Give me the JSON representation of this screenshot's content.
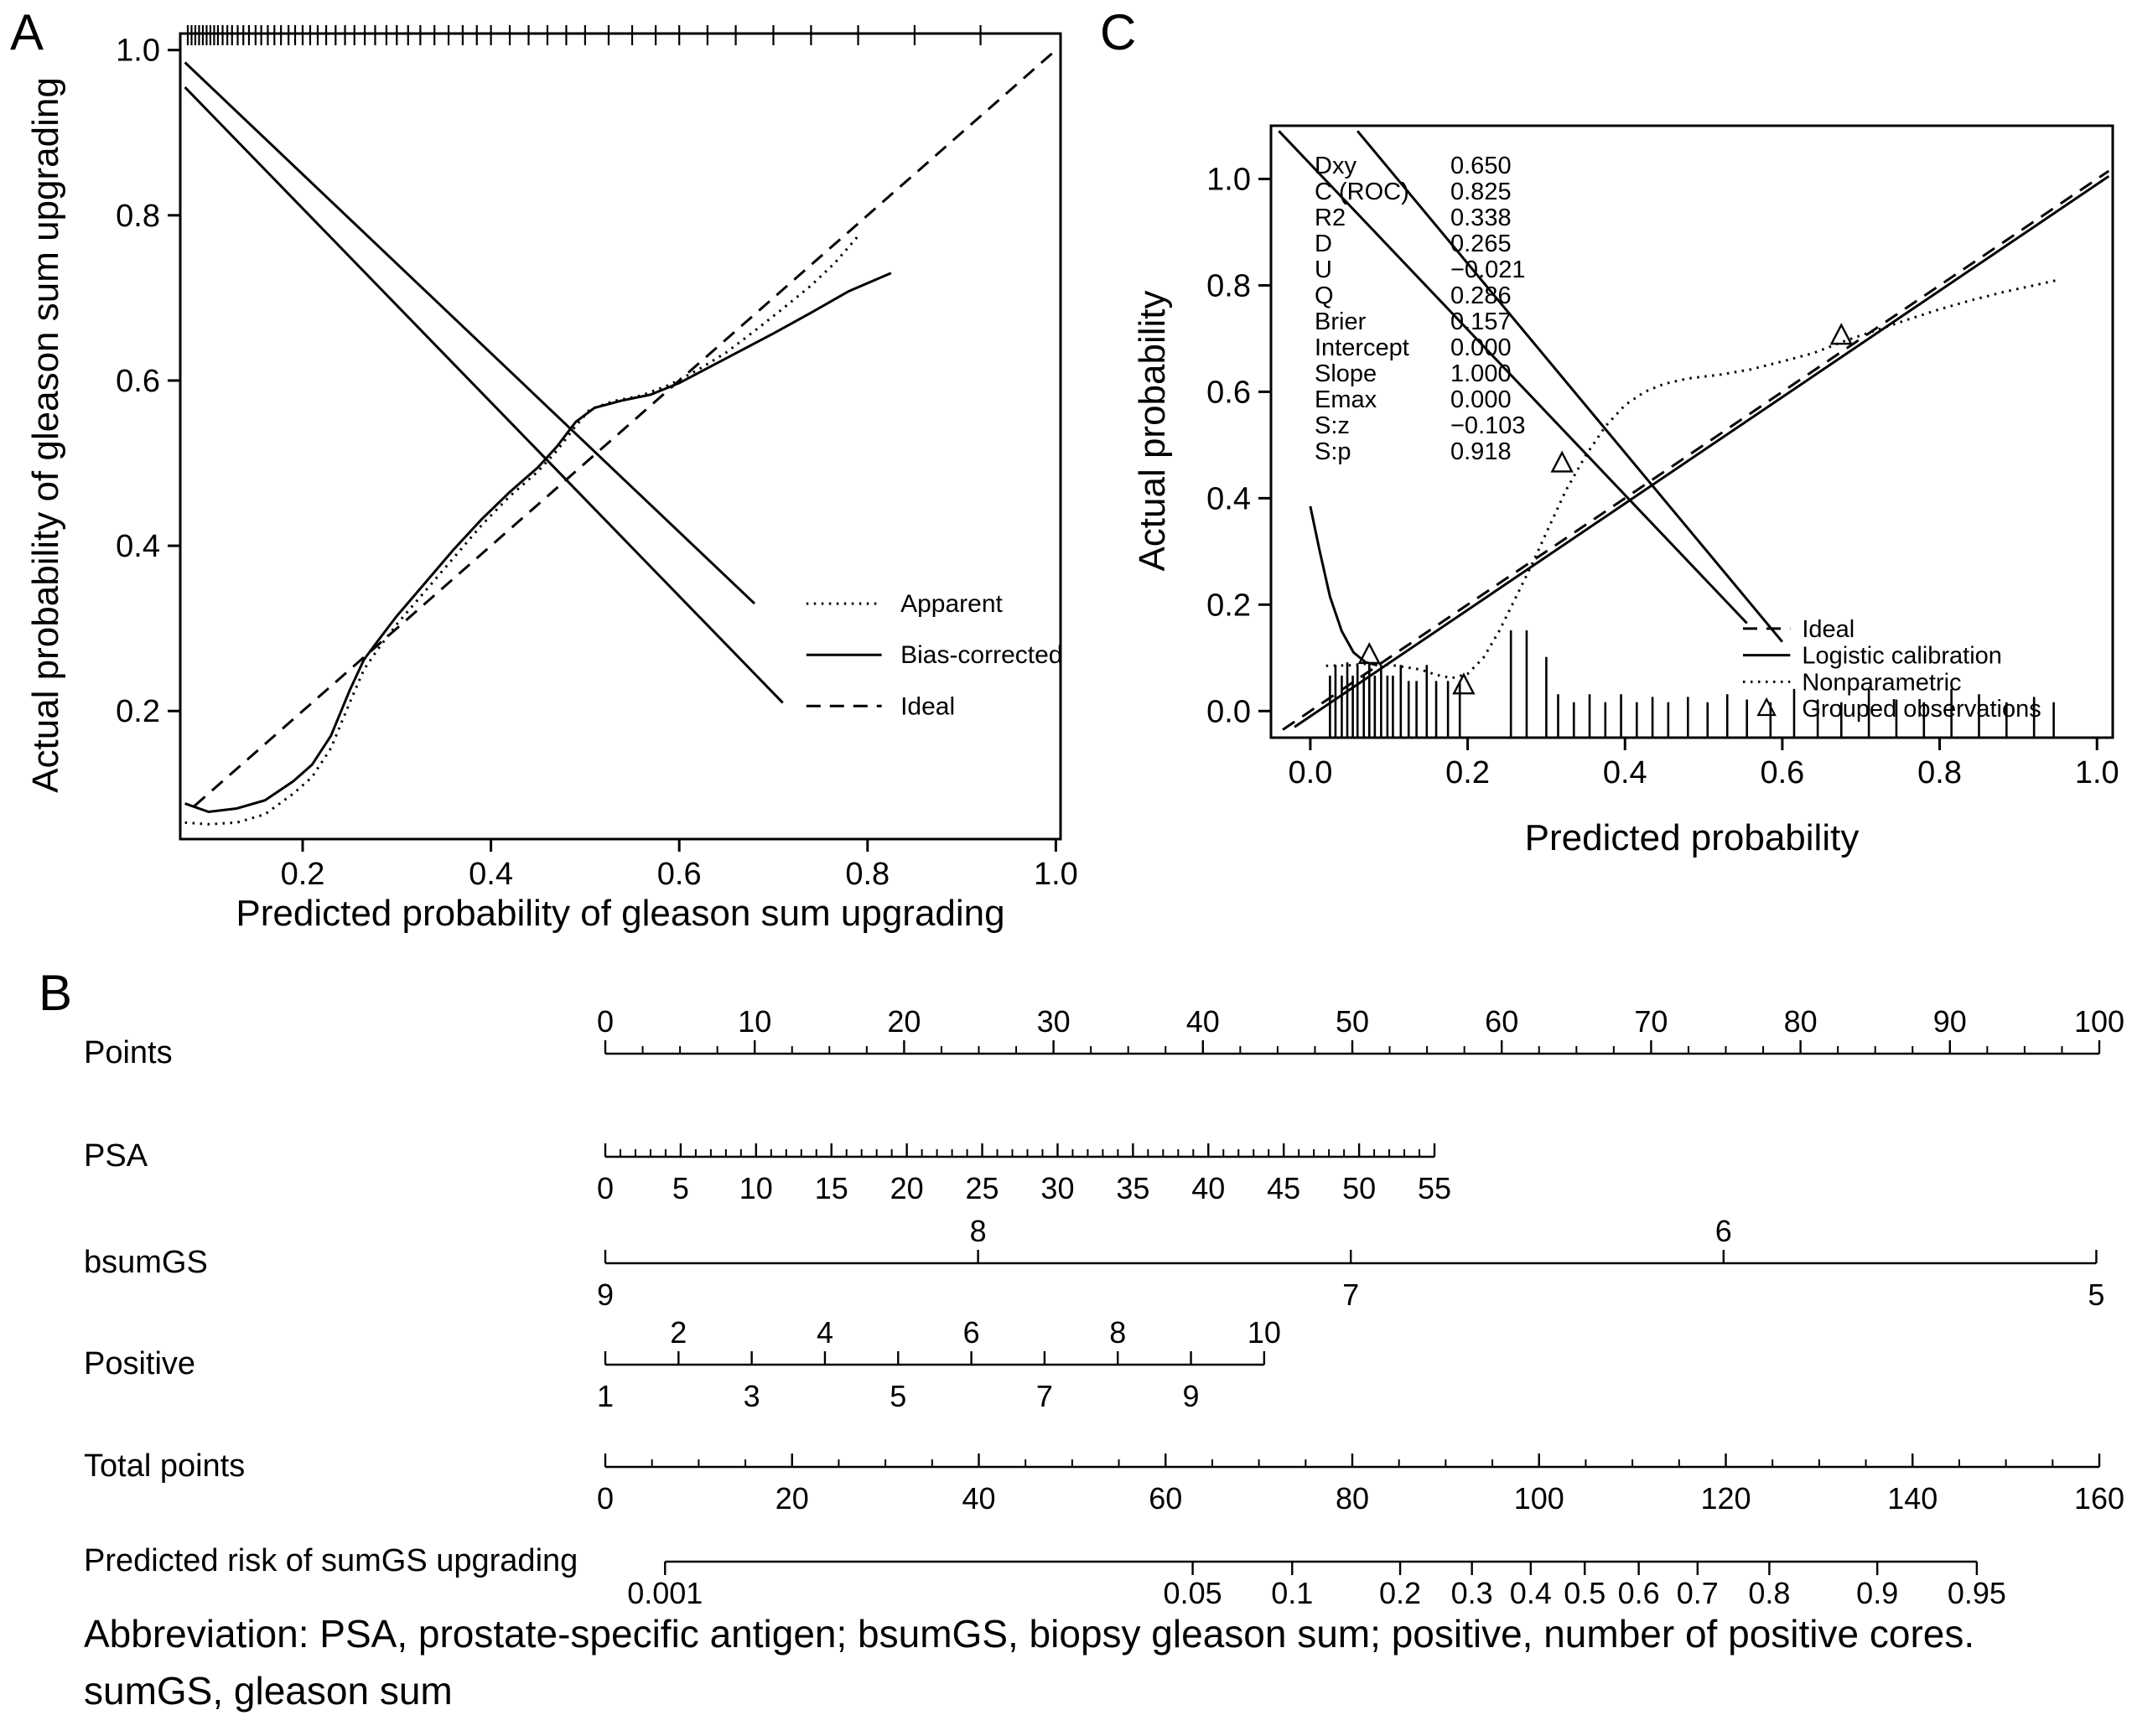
{
  "figure": {
    "background": "#ffffff",
    "ink": "#000000"
  },
  "panels": {
    "a": {
      "letter": "A"
    },
    "b": {
      "letter": "B"
    },
    "c": {
      "letter": "C"
    }
  },
  "abbreviation": {
    "line1": "Abbreviation: PSA, prostate-specific antigen; bsumGS, biopsy gleason sum; positive, number of positive cores.",
    "line2": "sumGS, gleason sum"
  },
  "chart_data": [
    {
      "id": "panel-a",
      "type": "line",
      "title": "",
      "xlabel": "Predicted probability of gleason sum upgrading",
      "ylabel": "Actual probability of gleason sum upgrading",
      "xlim": [
        0.07,
        1.005
      ],
      "ylim": [
        0.045,
        1.02
      ],
      "grid": false,
      "xticks": [
        {
          "v": 0.2,
          "label": "0.2"
        },
        {
          "v": 0.4,
          "label": "0.4"
        },
        {
          "v": 0.6,
          "label": "0.6"
        },
        {
          "v": 0.8,
          "label": "0.8"
        },
        {
          "v": 1.0,
          "label": "1.0"
        }
      ],
      "yticks": [
        {
          "v": 0.2,
          "label": "0.2"
        },
        {
          "v": 0.4,
          "label": "0.4"
        },
        {
          "v": 0.6,
          "label": "0.6"
        },
        {
          "v": 0.8,
          "label": "0.8"
        },
        {
          "v": 1.0,
          "label": "1.0"
        }
      ],
      "series": [
        {
          "name": "Ideal",
          "style": "dashed",
          "points": [
            [
              0.085,
              0.085
            ],
            [
              1.0,
              1.0
            ]
          ]
        },
        {
          "name": "Apparent",
          "style": "dotted",
          "points": [
            [
              0.075,
              0.065
            ],
            [
              0.1,
              0.063
            ],
            [
              0.13,
              0.065
            ],
            [
              0.16,
              0.075
            ],
            [
              0.19,
              0.1
            ],
            [
              0.21,
              0.12
            ],
            [
              0.23,
              0.155
            ],
            [
              0.25,
              0.21
            ],
            [
              0.265,
              0.25
            ],
            [
              0.28,
              0.275
            ],
            [
              0.3,
              0.305
            ],
            [
              0.33,
              0.345
            ],
            [
              0.36,
              0.385
            ],
            [
              0.39,
              0.425
            ],
            [
              0.42,
              0.46
            ],
            [
              0.45,
              0.49
            ],
            [
              0.47,
              0.515
            ],
            [
              0.49,
              0.545
            ],
            [
              0.505,
              0.565
            ],
            [
              0.53,
              0.575
            ],
            [
              0.56,
              0.582
            ],
            [
              0.59,
              0.595
            ],
            [
              0.62,
              0.613
            ],
            [
              0.65,
              0.634
            ],
            [
              0.68,
              0.66
            ],
            [
              0.71,
              0.687
            ],
            [
              0.74,
              0.715
            ],
            [
              0.765,
              0.742
            ],
            [
              0.79,
              0.775
            ]
          ]
        },
        {
          "name": "Bias-corrected",
          "style": "solid",
          "points": [
            [
              0.075,
              0.088
            ],
            [
              0.1,
              0.078
            ],
            [
              0.13,
              0.082
            ],
            [
              0.16,
              0.092
            ],
            [
              0.19,
              0.115
            ],
            [
              0.21,
              0.135
            ],
            [
              0.23,
              0.17
            ],
            [
              0.25,
              0.225
            ],
            [
              0.265,
              0.262
            ],
            [
              0.28,
              0.285
            ],
            [
              0.3,
              0.315
            ],
            [
              0.33,
              0.355
            ],
            [
              0.36,
              0.395
            ],
            [
              0.39,
              0.432
            ],
            [
              0.42,
              0.465
            ],
            [
              0.45,
              0.495
            ],
            [
              0.47,
              0.52
            ],
            [
              0.49,
              0.55
            ],
            [
              0.51,
              0.567
            ],
            [
              0.54,
              0.576
            ],
            [
              0.57,
              0.583
            ],
            [
              0.6,
              0.597
            ],
            [
              0.63,
              0.615
            ],
            [
              0.66,
              0.633
            ],
            [
              0.7,
              0.657
            ],
            [
              0.74,
              0.682
            ],
            [
              0.78,
              0.708
            ],
            [
              0.825,
              0.73
            ]
          ]
        },
        {
          "name": "overlay line upper",
          "style": "solid",
          "points": [
            [
              0.075,
              0.985
            ],
            [
              0.68,
              0.33
            ]
          ]
        },
        {
          "name": "overlay line lower",
          "style": "solid",
          "points": [
            [
              0.075,
              0.955
            ],
            [
              0.71,
              0.21
            ]
          ]
        }
      ],
      "rug_top": [
        0.078,
        0.082,
        0.086,
        0.09,
        0.094,
        0.098,
        0.102,
        0.106,
        0.11,
        0.115,
        0.12,
        0.125,
        0.131,
        0.137,
        0.143,
        0.15,
        0.156,
        0.163,
        0.17,
        0.177,
        0.185,
        0.192,
        0.2,
        0.208,
        0.216,
        0.225,
        0.235,
        0.245,
        0.255,
        0.266,
        0.277,
        0.289,
        0.3,
        0.312,
        0.325,
        0.34,
        0.355,
        0.37,
        0.385,
        0.4,
        0.42,
        0.44,
        0.46,
        0.48,
        0.5,
        0.525,
        0.55,
        0.575,
        0.6,
        0.63,
        0.66,
        0.7,
        0.74,
        0.79,
        0.85,
        0.92
      ],
      "legend": {
        "position": "inside-right",
        "line_x": [
          0.735,
          0.815
        ],
        "text_x": 0.835,
        "ys": [
          0.33,
          0.268,
          0.206
        ],
        "items": [
          {
            "label": "Apparent",
            "style": "dotted"
          },
          {
            "label": "Bias-corrected",
            "style": "solid"
          },
          {
            "label": "Ideal",
            "style": "dashed"
          }
        ]
      }
    },
    {
      "id": "panel-c",
      "type": "line",
      "title": "",
      "xlabel": "Predicted probability",
      "ylabel": "Actual probability",
      "xlim": [
        -0.05,
        1.02
      ],
      "ylim": [
        -0.05,
        1.1
      ],
      "grid": false,
      "xticks": [
        {
          "v": 0,
          "label": "0.0"
        },
        {
          "v": 0.2,
          "label": "0.2"
        },
        {
          "v": 0.4,
          "label": "0.4"
        },
        {
          "v": 0.6,
          "label": "0.6"
        },
        {
          "v": 0.8,
          "label": "0.8"
        },
        {
          "v": 1.0,
          "label": "1.0"
        }
      ],
      "yticks": [
        {
          "v": 0,
          "label": "0.0"
        },
        {
          "v": 0.2,
          "label": "0.2"
        },
        {
          "v": 0.4,
          "label": "0.4"
        },
        {
          "v": 0.6,
          "label": "0.6"
        },
        {
          "v": 0.8,
          "label": "0.8"
        },
        {
          "v": 1.0,
          "label": "1.0"
        }
      ],
      "stats": {
        "rows": [
          [
            "Dxy",
            "0.650"
          ],
          [
            "C (ROC)",
            "0.825"
          ],
          [
            "R2",
            "0.338"
          ],
          [
            "D",
            "0.265"
          ],
          [
            "U",
            "−0.021"
          ],
          [
            "Q",
            "0.286"
          ],
          [
            "Brier",
            "0.157"
          ],
          [
            "Intercept",
            "0.000"
          ],
          [
            "Slope",
            "1.000"
          ],
          [
            "Emax",
            "0.000"
          ],
          [
            "S:z",
            "−0.103"
          ],
          [
            "S:p",
            "0.918"
          ]
        ]
      },
      "series": [
        {
          "name": "Ideal",
          "style": "dashed",
          "points": [
            [
              -0.035,
              -0.035
            ],
            [
              1.015,
              1.015
            ]
          ]
        },
        {
          "name": "Logistic calibration",
          "style": "solid",
          "points": [
            [
              -0.02,
              -0.03
            ],
            [
              1.015,
              1.005
            ]
          ]
        },
        {
          "name": "Nonparametric",
          "style": "dotted",
          "points": [
            [
              0.02,
              0.085
            ],
            [
              0.05,
              0.086
            ],
            [
              0.08,
              0.09
            ],
            [
              0.11,
              0.085
            ],
            [
              0.14,
              0.078
            ],
            [
              0.16,
              0.068
            ],
            [
              0.18,
              0.062
            ],
            [
              0.2,
              0.07
            ],
            [
              0.22,
              0.1
            ],
            [
              0.24,
              0.15
            ],
            [
              0.26,
              0.21
            ],
            [
              0.28,
              0.27
            ],
            [
              0.3,
              0.335
            ],
            [
              0.325,
              0.415
            ],
            [
              0.35,
              0.48
            ],
            [
              0.375,
              0.535
            ],
            [
              0.4,
              0.575
            ],
            [
              0.425,
              0.6
            ],
            [
              0.45,
              0.615
            ],
            [
              0.48,
              0.625
            ],
            [
              0.52,
              0.632
            ],
            [
              0.56,
              0.642
            ],
            [
              0.6,
              0.657
            ],
            [
              0.64,
              0.673
            ],
            [
              0.68,
              0.696
            ],
            [
              0.72,
              0.716
            ],
            [
              0.76,
              0.736
            ],
            [
              0.8,
              0.755
            ],
            [
              0.84,
              0.772
            ],
            [
              0.88,
              0.787
            ],
            [
              0.92,
              0.8
            ],
            [
              0.95,
              0.81
            ]
          ]
        },
        {
          "name": "left edge curve",
          "style": "solid",
          "points": [
            [
              0.0,
              0.385
            ],
            [
              0.012,
              0.3
            ],
            [
              0.025,
              0.215
            ],
            [
              0.04,
              0.15
            ],
            [
              0.055,
              0.11
            ],
            [
              0.07,
              0.092
            ],
            [
              0.085,
              0.086
            ]
          ]
        },
        {
          "name": "overlay line upper",
          "style": "solid",
          "points": [
            [
              -0.04,
              1.09
            ],
            [
              0.555,
              0.165
            ]
          ]
        },
        {
          "name": "overlay line lower",
          "style": "solid",
          "points": [
            [
              0.06,
              1.09
            ],
            [
              0.6,
              0.13
            ]
          ]
        }
      ],
      "triangles": [
        [
          0.075,
          0.105
        ],
        [
          0.195,
          0.048
        ],
        [
          0.32,
          0.465
        ],
        [
          0.675,
          0.705
        ]
      ],
      "spikes": [
        [
          0.025,
          0.115
        ],
        [
          0.032,
          0.135
        ],
        [
          0.04,
          0.115
        ],
        [
          0.047,
          0.14
        ],
        [
          0.054,
          0.115
        ],
        [
          0.06,
          0.135
        ],
        [
          0.068,
          0.115
        ],
        [
          0.075,
          0.14
        ],
        [
          0.082,
          0.115
        ],
        [
          0.09,
          0.135
        ],
        [
          0.098,
          0.115
        ],
        [
          0.105,
          0.115
        ],
        [
          0.115,
          0.135
        ],
        [
          0.125,
          0.105
        ],
        [
          0.135,
          0.105
        ],
        [
          0.148,
          0.135
        ],
        [
          0.16,
          0.105
        ],
        [
          0.175,
          0.105
        ],
        [
          0.19,
          0.105
        ],
        [
          0.255,
          0.2
        ],
        [
          0.275,
          0.2
        ],
        [
          0.3,
          0.15
        ],
        [
          0.315,
          0.08
        ],
        [
          0.335,
          0.065
        ],
        [
          0.355,
          0.08
        ],
        [
          0.375,
          0.065
        ],
        [
          0.395,
          0.08
        ],
        [
          0.415,
          0.065
        ],
        [
          0.435,
          0.075
        ],
        [
          0.455,
          0.065
        ],
        [
          0.48,
          0.075
        ],
        [
          0.505,
          0.065
        ],
        [
          0.53,
          0.08
        ],
        [
          0.555,
          0.07
        ],
        [
          0.585,
          0.065
        ],
        [
          0.615,
          0.09
        ],
        [
          0.645,
          0.07
        ],
        [
          0.675,
          0.065
        ],
        [
          0.71,
          0.09
        ],
        [
          0.745,
          0.07
        ],
        [
          0.78,
          0.065
        ],
        [
          0.815,
          0.09
        ],
        [
          0.85,
          0.08
        ],
        [
          0.885,
          0.065
        ],
        [
          0.92,
          0.075
        ],
        [
          0.945,
          0.065
        ]
      ],
      "legend": {
        "position": "inside-bottom-right",
        "line_x": [
          0.55,
          0.61
        ],
        "text_x": 0.625,
        "ys": [
          0.155,
          0.105,
          0.055,
          0.005
        ],
        "items": [
          {
            "label": "Ideal",
            "style": "dashed"
          },
          {
            "label": "Logistic calibration",
            "style": "solid"
          },
          {
            "label": "Nonparametric",
            "style": "dotted"
          },
          {
            "label": "Grouped observations",
            "style": "triangle"
          }
        ]
      }
    },
    {
      "id": "nomogram",
      "type": "nomogram",
      "title": "",
      "rows": [
        {
          "label": "Points",
          "kind": "linear",
          "vmin": 0,
          "vmax": 100,
          "major": 10,
          "minor": 2.5,
          "side": "above",
          "u0": 0,
          "u1": 100,
          "tick_dir": "up"
        },
        {
          "label": "PSA",
          "kind": "linear",
          "vmin": 0,
          "vmax": 55,
          "major": 5,
          "minor": 1,
          "side": "below",
          "u0": 0,
          "u1": 55.5,
          "tick_dir": "up"
        },
        {
          "label": "bsumGS",
          "kind": "categorical",
          "values": [
            "9",
            "8",
            "7",
            "6",
            "5"
          ],
          "start_side": "below",
          "u0": 0,
          "u1": 99.8,
          "tick_dir": "up"
        },
        {
          "label": "Positive",
          "kind": "linear",
          "vmin": 1,
          "vmax": 10,
          "major": 1,
          "minor": null,
          "side": "alternate",
          "u0": 0,
          "u1": 44.1,
          "tick_dir": "up"
        },
        {
          "label": "Total points",
          "kind": "linear",
          "vmin": 0,
          "vmax": 160,
          "major": 20,
          "minor": 5,
          "side": "below",
          "u0": 0,
          "u1": 100,
          "tick_dir": "up"
        },
        {
          "label": "Predicted risk of sumGS upgrading",
          "kind": "logit",
          "values": [
            0.001,
            0.05,
            0.1,
            0.2,
            0.3,
            0.4,
            0.5,
            0.6,
            0.7,
            0.8,
            0.9,
            0.95
          ],
          "labels": [
            "0.001",
            "0.05",
            "0.1",
            "0.2",
            "0.3",
            "0.4",
            "0.5",
            "0.6",
            "0.7",
            "0.8",
            "0.9",
            "0.95"
          ],
          "side": "below",
          "u0": 4.0,
          "u1": 91.8,
          "tick_dir": "down"
        }
      ]
    }
  ]
}
